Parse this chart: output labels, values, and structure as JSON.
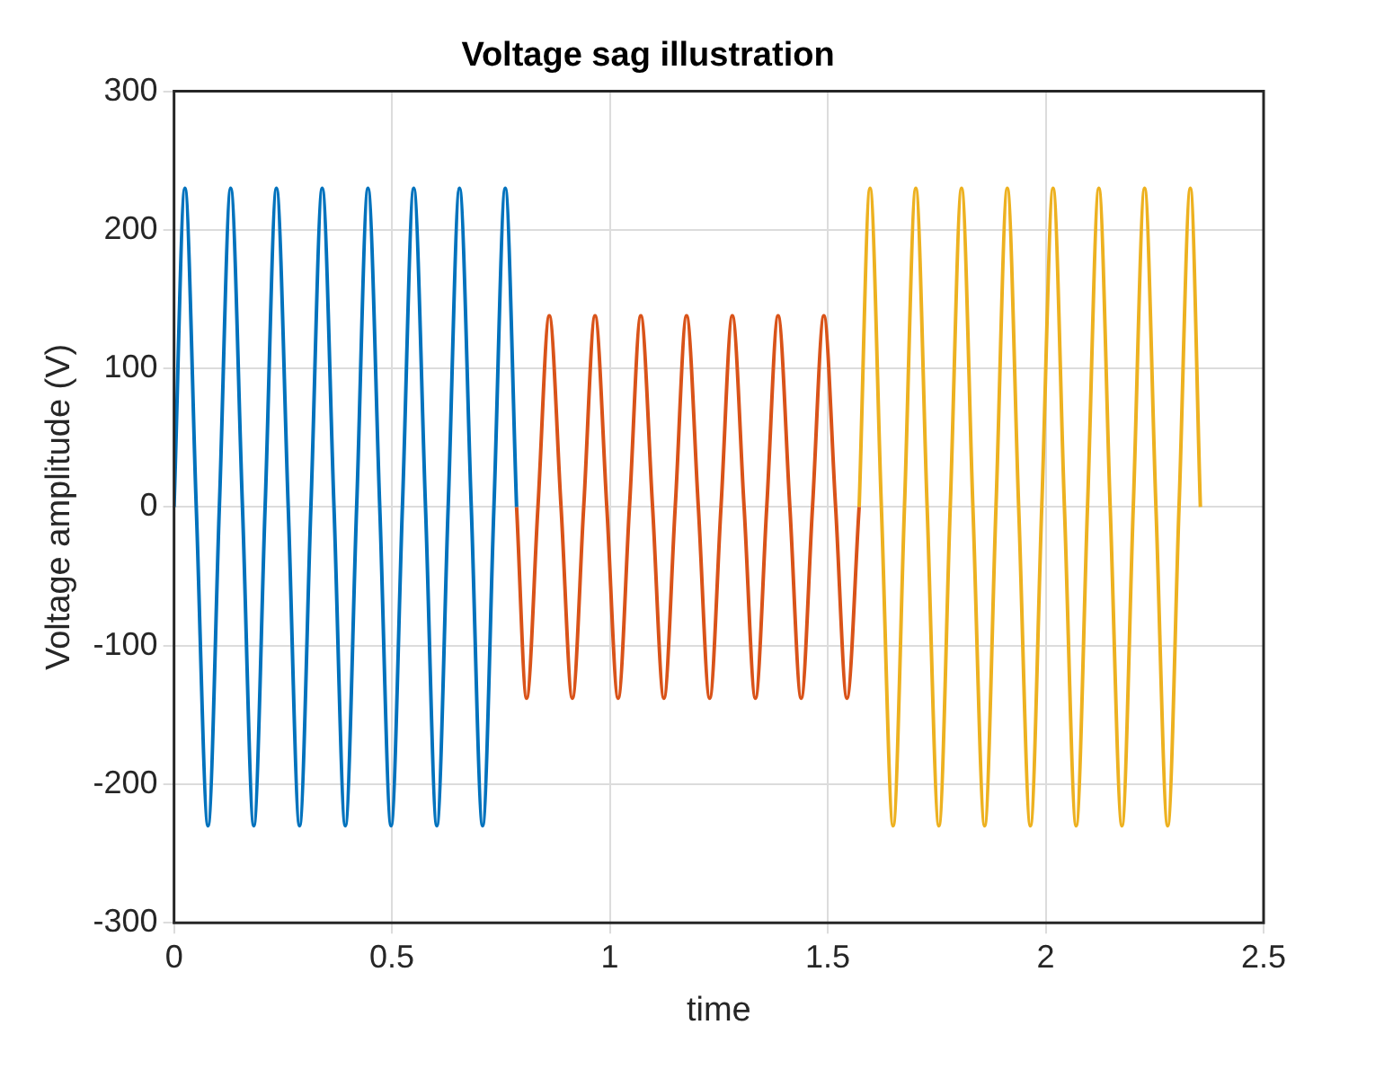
{
  "chart_data": {
    "type": "line",
    "title": "Voltage sag illustration",
    "xlabel": "time",
    "ylabel": "Voltage amplitude (V)",
    "xlim": [
      0,
      2.5
    ],
    "xticks": [
      0,
      0.5,
      1,
      1.5,
      2,
      2.5
    ],
    "ylim": [
      -300,
      300
    ],
    "yticks": [
      -300,
      -200,
      -100,
      0,
      100,
      200,
      300
    ],
    "grid": true,
    "series": [
      {
        "color": "#0072bd",
        "x": [
          0,
          0.025,
          0.051,
          0.078,
          0.104,
          0.13,
          0.157,
          0.183,
          0.209,
          0.235,
          0.262,
          0.288,
          0.314,
          0.34,
          0.367,
          0.393,
          0.419,
          0.445,
          0.472,
          0.498,
          0.524,
          0.55,
          0.577,
          0.603,
          0.629,
          0.655,
          0.682,
          0.708,
          0.734,
          0.76,
          0.786
        ],
        "values": [
          0,
          230,
          0,
          -230,
          0,
          230,
          0,
          -230,
          0,
          230,
          0,
          -230,
          0,
          230,
          0,
          -230,
          0,
          230,
          0,
          -230,
          0,
          230,
          0,
          -230,
          0,
          230,
          0,
          -230,
          0,
          230,
          0
        ]
      },
      {
        "color": "#d95319",
        "x": [
          0.786,
          0.809,
          0.835,
          0.861,
          0.888,
          0.914,
          0.94,
          0.966,
          0.993,
          1.019,
          1.045,
          1.071,
          1.098,
          1.124,
          1.15,
          1.176,
          1.203,
          1.229,
          1.255,
          1.281,
          1.308,
          1.334,
          1.36,
          1.386,
          1.413,
          1.439,
          1.465,
          1.491,
          1.518,
          1.544,
          1.572
        ],
        "values": [
          0,
          -138,
          0,
          138,
          0,
          -138,
          0,
          138,
          0,
          -138,
          0,
          138,
          0,
          -138,
          0,
          138,
          0,
          -138,
          0,
          138,
          0,
          -138,
          0,
          138,
          0,
          -138,
          0,
          138,
          0,
          -138,
          0
        ]
      },
      {
        "color": "#edb120",
        "x": [
          1.572,
          1.597,
          1.623,
          1.65,
          1.676,
          1.702,
          1.728,
          1.755,
          1.781,
          1.807,
          1.833,
          1.86,
          1.886,
          1.912,
          1.938,
          1.965,
          1.991,
          2.017,
          2.043,
          2.07,
          2.096,
          2.122,
          2.148,
          2.175,
          2.201,
          2.227,
          2.253,
          2.28,
          2.306,
          2.332,
          2.355
        ],
        "values": [
          0,
          230,
          0,
          -230,
          0,
          230,
          0,
          -230,
          0,
          230,
          0,
          -230,
          0,
          230,
          0,
          -230,
          0,
          230,
          0,
          -230,
          0,
          230,
          0,
          -230,
          0,
          230,
          0,
          -230,
          0,
          230,
          0
        ]
      }
    ]
  }
}
